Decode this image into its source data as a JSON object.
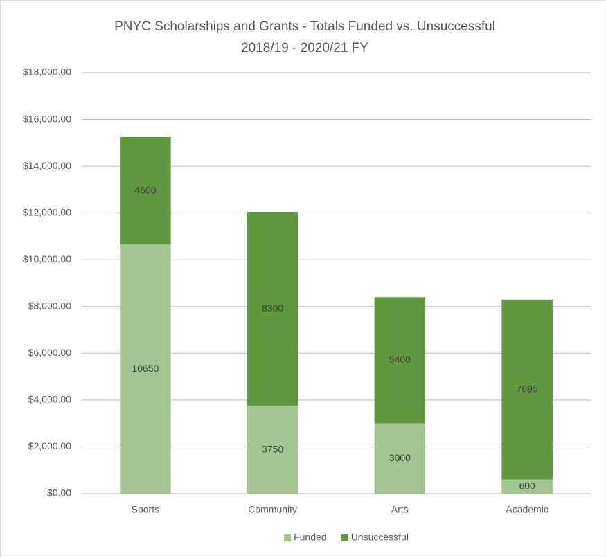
{
  "chart_data": {
    "type": "bar",
    "stacked": true,
    "title": "PNYC Scholarships and Grants - Totals Funded vs. Unsuccessful",
    "subtitle": "2018/19 - 2020/21 FY",
    "categories": [
      "Sports",
      "Community",
      "Arts",
      "Academic"
    ],
    "series": [
      {
        "name": "Funded",
        "color": "#a2c591",
        "values": [
          10650,
          3750,
          3000,
          600
        ]
      },
      {
        "name": "Unsuccessful",
        "color": "#5f983e",
        "values": [
          4600,
          8300,
          5400,
          7695
        ]
      }
    ],
    "ylim": [
      0,
      18000
    ],
    "yticks": [
      {
        "value": 0,
        "label": "$0.00"
      },
      {
        "value": 2000,
        "label": "$2,000.00"
      },
      {
        "value": 4000,
        "label": "$4,000.00"
      },
      {
        "value": 6000,
        "label": "$6,000.00"
      },
      {
        "value": 8000,
        "label": "$8,000.00"
      },
      {
        "value": 10000,
        "label": "$10,000.00"
      },
      {
        "value": 12000,
        "label": "$12,000.00"
      },
      {
        "value": 14000,
        "label": "$14,000.00"
      },
      {
        "value": 16000,
        "label": "$16,000.00"
      },
      {
        "value": 18000,
        "label": "$18,000.00"
      }
    ],
    "grid": true,
    "legend": "bottom"
  }
}
